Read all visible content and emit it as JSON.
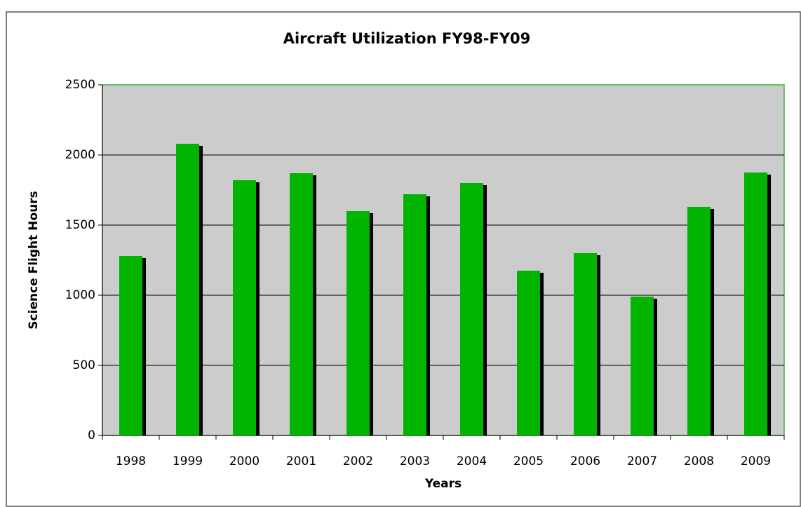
{
  "chart_data": {
    "type": "bar",
    "title": "Aircraft Utilization FY98-FY09",
    "x_label": "Years",
    "y_label": "Science Flight Hours",
    "categories": [
      "1998",
      "1999",
      "2000",
      "2001",
      "2002",
      "2003",
      "2004",
      "2005",
      "2006",
      "2007",
      "2008",
      "2009"
    ],
    "values": [
      1280,
      2080,
      1820,
      1870,
      1600,
      1720,
      1800,
      1175,
      1300,
      990,
      1630,
      1875
    ],
    "color": "#00b400",
    "ylim": [
      0,
      2500
    ],
    "yticks": [
      0,
      500,
      1000,
      1500,
      2000,
      2500
    ],
    "grid": true
  }
}
